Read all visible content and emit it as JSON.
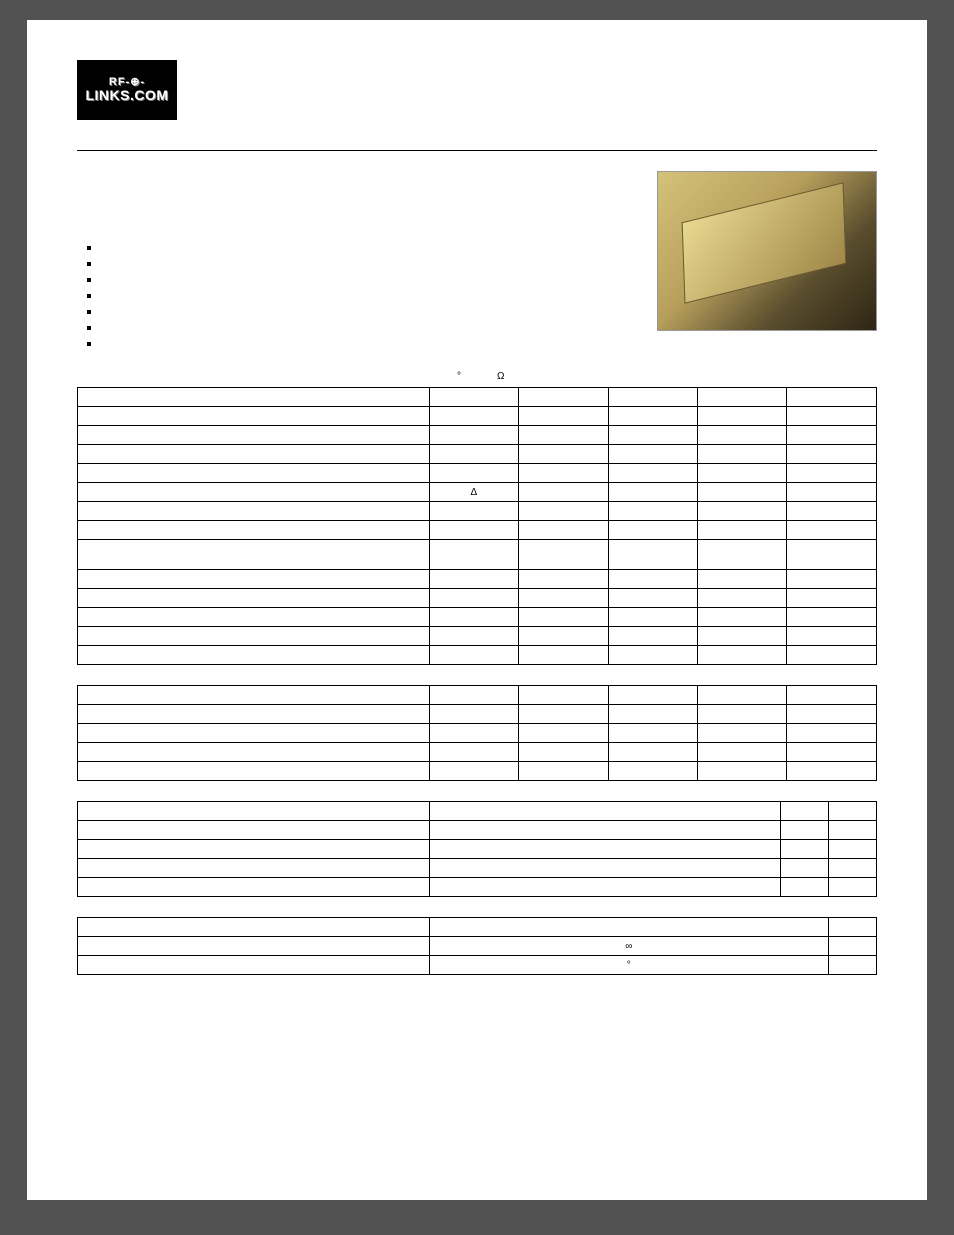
{
  "logo": {
    "line1": "RF-⊕-",
    "line2": "LINKS.COM"
  },
  "features_count": 7,
  "caption1": {
    "deg": "°",
    "omega": "Ω"
  },
  "table1": {
    "rows": 14,
    "cols": 6,
    "symbol_row_idx": 5,
    "symbol_col_idx": 1,
    "symbol": "Δ"
  },
  "table2": {
    "rows": 5,
    "cols": 6
  },
  "table3": {
    "rows": 5,
    "cols": 4
  },
  "table4": {
    "rows": 3,
    "cols": 3,
    "symbols": {
      "1": "∞",
      "2": "°"
    }
  }
}
